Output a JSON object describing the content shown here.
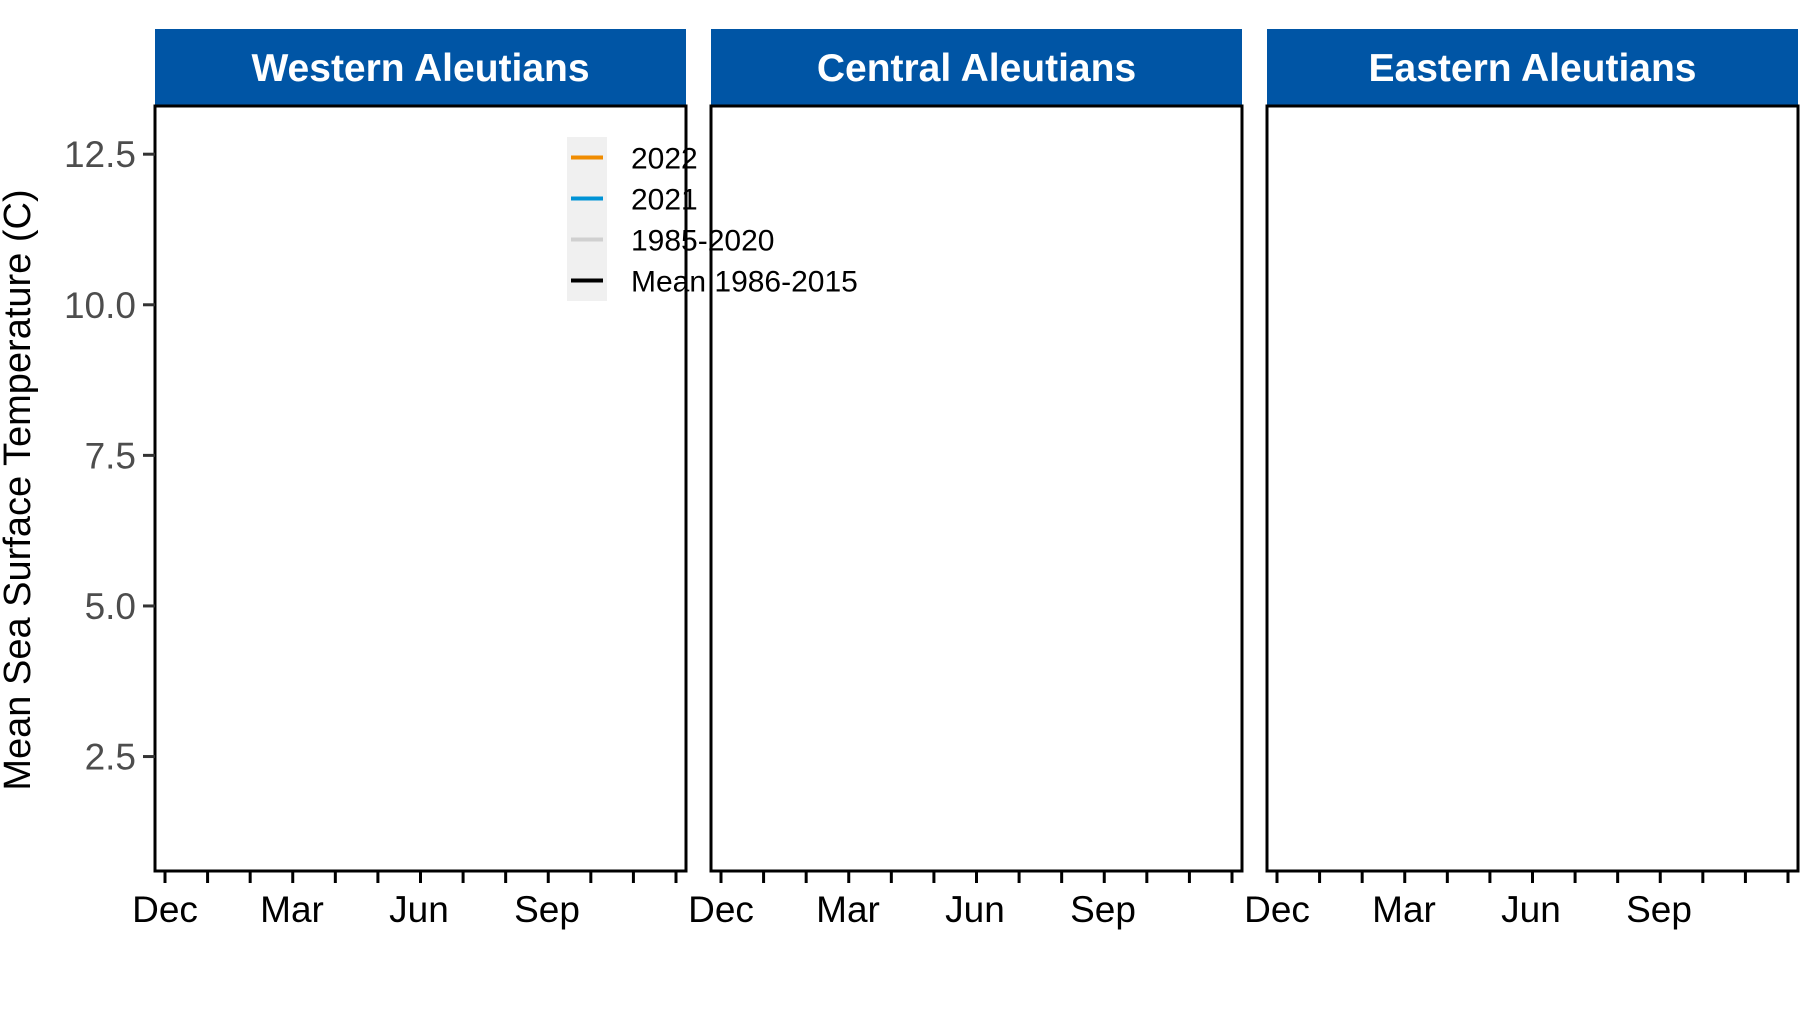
{
  "chart_data": {
    "type": "line",
    "facets": [
      "Western Aleutians",
      "Central Aleutians",
      "Eastern Aleutians"
    ],
    "ylabel": "Mean Sea Surface Temperature (C)",
    "xlabel": "",
    "yticks": [
      2.5,
      5.0,
      7.5,
      10.0,
      12.5
    ],
    "ytick_labels": [
      "2.5",
      "5.0",
      "7.5",
      "10.0",
      "12.5"
    ],
    "ylim": [
      0.6,
      13.3
    ],
    "xticks_major": [
      "Dec",
      "Mar",
      "Jun",
      "Sep"
    ],
    "minor_ticks_per_panel": 13,
    "legend": {
      "placement": "top-left, inside Western Aleutians panel",
      "entries": [
        {
          "label": "2022",
          "color": "#f08c00"
        },
        {
          "label": "2021",
          "color": "#0093d6"
        },
        {
          "label": "1985-2020",
          "color": "#d0d0d0"
        },
        {
          "label": "Mean 1986-2015",
          "color": "#000000"
        }
      ]
    },
    "series": [],
    "grid": false
  },
  "colors": {
    "strip_background": "#0055a5",
    "strip_text": "#ffffff",
    "panel_border": "#000000",
    "legend_key_background": "#f0f0f0"
  }
}
